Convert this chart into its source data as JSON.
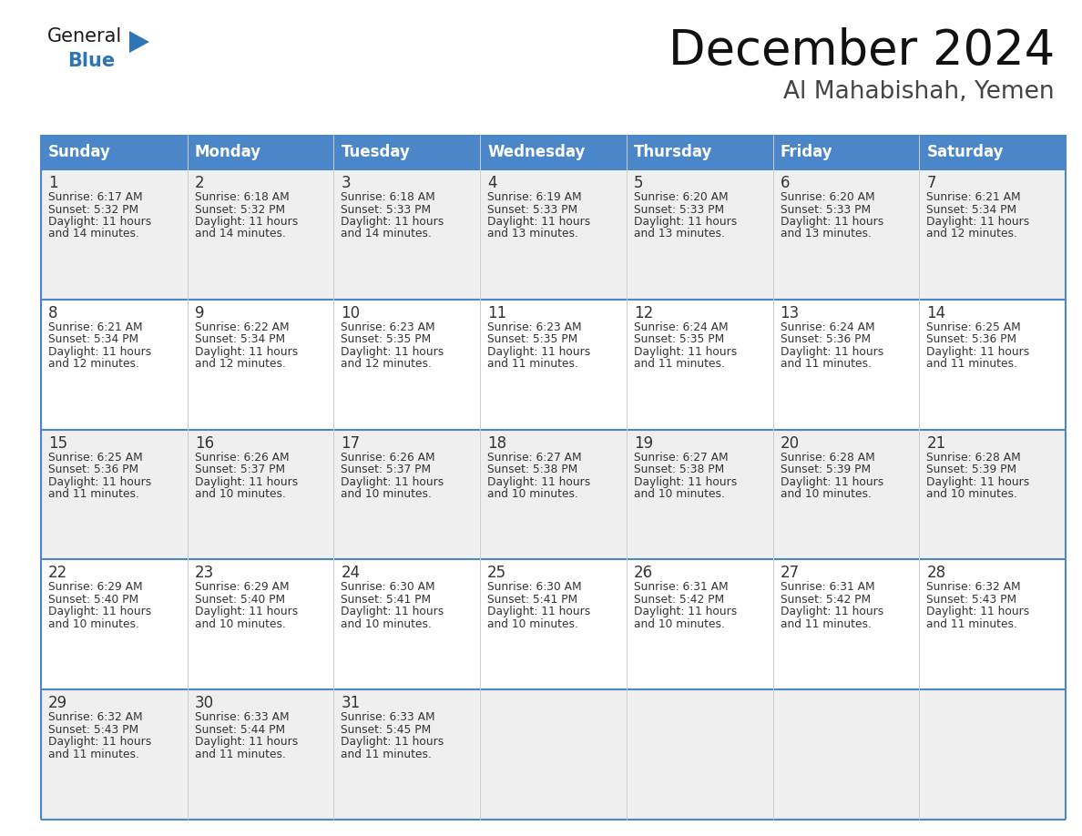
{
  "title": "December 2024",
  "subtitle": "Al Mahabishah, Yemen",
  "days_of_week": [
    "Sunday",
    "Monday",
    "Tuesday",
    "Wednesday",
    "Thursday",
    "Friday",
    "Saturday"
  ],
  "header_bg": "#4A86C8",
  "header_text": "#FFFFFF",
  "row_bg_even": "#EFEFEF",
  "row_bg_odd": "#FFFFFF",
  "border_color": "#4A86C8",
  "text_color": "#333333",
  "calendar_data": [
    [
      {
        "day": 1,
        "sunrise": "6:17 AM",
        "sunset": "5:32 PM",
        "daylight_min": "14 minutes."
      },
      {
        "day": 2,
        "sunrise": "6:18 AM",
        "sunset": "5:32 PM",
        "daylight_min": "14 minutes."
      },
      {
        "day": 3,
        "sunrise": "6:18 AM",
        "sunset": "5:33 PM",
        "daylight_min": "14 minutes."
      },
      {
        "day": 4,
        "sunrise": "6:19 AM",
        "sunset": "5:33 PM",
        "daylight_min": "13 minutes."
      },
      {
        "day": 5,
        "sunrise": "6:20 AM",
        "sunset": "5:33 PM",
        "daylight_min": "13 minutes."
      },
      {
        "day": 6,
        "sunrise": "6:20 AM",
        "sunset": "5:33 PM",
        "daylight_min": "13 minutes."
      },
      {
        "day": 7,
        "sunrise": "6:21 AM",
        "sunset": "5:34 PM",
        "daylight_min": "12 minutes."
      }
    ],
    [
      {
        "day": 8,
        "sunrise": "6:21 AM",
        "sunset": "5:34 PM",
        "daylight_min": "12 minutes."
      },
      {
        "day": 9,
        "sunrise": "6:22 AM",
        "sunset": "5:34 PM",
        "daylight_min": "12 minutes."
      },
      {
        "day": 10,
        "sunrise": "6:23 AM",
        "sunset": "5:35 PM",
        "daylight_min": "12 minutes."
      },
      {
        "day": 11,
        "sunrise": "6:23 AM",
        "sunset": "5:35 PM",
        "daylight_min": "11 minutes."
      },
      {
        "day": 12,
        "sunrise": "6:24 AM",
        "sunset": "5:35 PM",
        "daylight_min": "11 minutes."
      },
      {
        "day": 13,
        "sunrise": "6:24 AM",
        "sunset": "5:36 PM",
        "daylight_min": "11 minutes."
      },
      {
        "day": 14,
        "sunrise": "6:25 AM",
        "sunset": "5:36 PM",
        "daylight_min": "11 minutes."
      }
    ],
    [
      {
        "day": 15,
        "sunrise": "6:25 AM",
        "sunset": "5:36 PM",
        "daylight_min": "11 minutes."
      },
      {
        "day": 16,
        "sunrise": "6:26 AM",
        "sunset": "5:37 PM",
        "daylight_min": "10 minutes."
      },
      {
        "day": 17,
        "sunrise": "6:26 AM",
        "sunset": "5:37 PM",
        "daylight_min": "10 minutes."
      },
      {
        "day": 18,
        "sunrise": "6:27 AM",
        "sunset": "5:38 PM",
        "daylight_min": "10 minutes."
      },
      {
        "day": 19,
        "sunrise": "6:27 AM",
        "sunset": "5:38 PM",
        "daylight_min": "10 minutes."
      },
      {
        "day": 20,
        "sunrise": "6:28 AM",
        "sunset": "5:39 PM",
        "daylight_min": "10 minutes."
      },
      {
        "day": 21,
        "sunrise": "6:28 AM",
        "sunset": "5:39 PM",
        "daylight_min": "10 minutes."
      }
    ],
    [
      {
        "day": 22,
        "sunrise": "6:29 AM",
        "sunset": "5:40 PM",
        "daylight_min": "10 minutes."
      },
      {
        "day": 23,
        "sunrise": "6:29 AM",
        "sunset": "5:40 PM",
        "daylight_min": "10 minutes."
      },
      {
        "day": 24,
        "sunrise": "6:30 AM",
        "sunset": "5:41 PM",
        "daylight_min": "10 minutes."
      },
      {
        "day": 25,
        "sunrise": "6:30 AM",
        "sunset": "5:41 PM",
        "daylight_min": "10 minutes."
      },
      {
        "day": 26,
        "sunrise": "6:31 AM",
        "sunset": "5:42 PM",
        "daylight_min": "10 minutes."
      },
      {
        "day": 27,
        "sunrise": "6:31 AM",
        "sunset": "5:42 PM",
        "daylight_min": "11 minutes."
      },
      {
        "day": 28,
        "sunrise": "6:32 AM",
        "sunset": "5:43 PM",
        "daylight_min": "11 minutes."
      }
    ],
    [
      {
        "day": 29,
        "sunrise": "6:32 AM",
        "sunset": "5:43 PM",
        "daylight_min": "11 minutes."
      },
      {
        "day": 30,
        "sunrise": "6:33 AM",
        "sunset": "5:44 PM",
        "daylight_min": "11 minutes."
      },
      {
        "day": 31,
        "sunrise": "6:33 AM",
        "sunset": "5:45 PM",
        "daylight_min": "11 minutes."
      },
      null,
      null,
      null,
      null
    ]
  ],
  "logo_general_color": "#1a1a1a",
  "logo_blue_color": "#2E75B6",
  "title_fontsize": 38,
  "subtitle_fontsize": 19,
  "header_fontsize": 12,
  "day_num_fontsize": 12,
  "cell_text_fontsize": 8.8
}
